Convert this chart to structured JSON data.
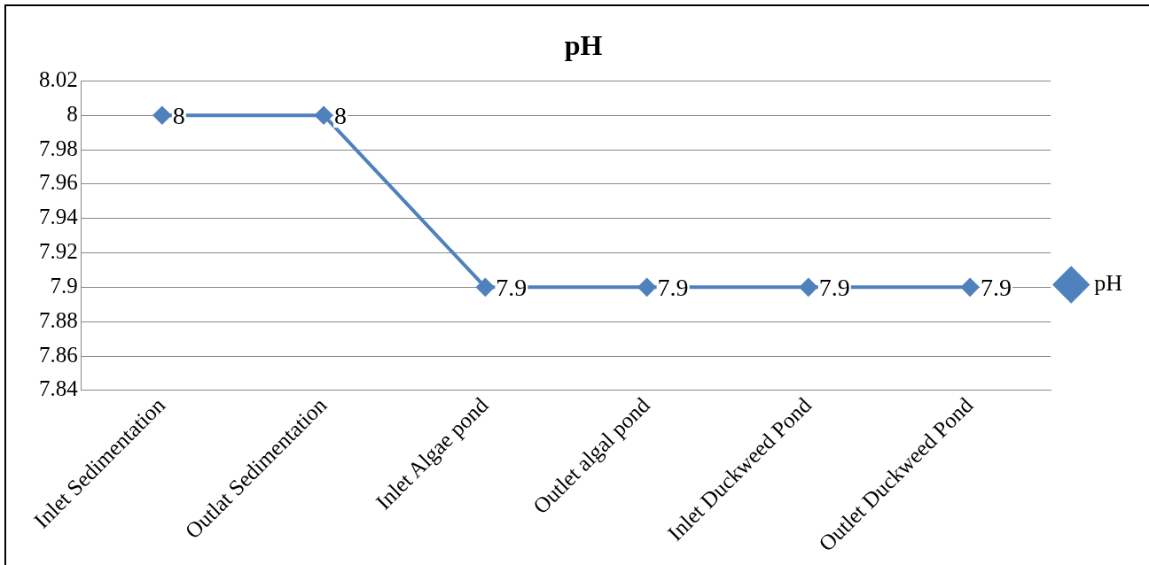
{
  "chart_data": {
    "type": "line",
    "title": "pH",
    "categories": [
      "Inlet Sedimentation",
      "Outlat Sedimentation",
      "Inlet Algae pond",
      "Outlet algal pond",
      "Inlet Duckweed Pond",
      "Outlet Duckweed Pond"
    ],
    "series": [
      {
        "name": "pH",
        "color": "#4f81bd",
        "values": [
          8,
          8,
          7.9,
          7.9,
          7.9,
          7.9
        ]
      }
    ],
    "ylim": [
      7.84,
      8.02
    ],
    "yticks": [
      7.84,
      7.86,
      7.88,
      7.9,
      7.92,
      7.94,
      7.96,
      7.98,
      8,
      8.02
    ],
    "grid": "y",
    "legend": "right",
    "marker": "diamond",
    "line_style": "solid",
    "data_labels": true
  }
}
